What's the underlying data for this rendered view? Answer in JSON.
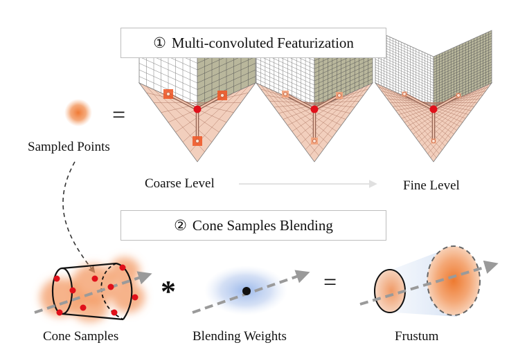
{
  "sections": [
    {
      "number": "①",
      "title": "Multi-convoluted Featurization"
    },
    {
      "number": "②",
      "title": "Cone Samples Blending"
    }
  ],
  "labels": {
    "sampled_points": "Sampled Points",
    "coarse_level": "Coarse Level",
    "fine_level": "Fine Level",
    "cone_samples": "Cone Samples",
    "blending_weights": "Blending Weights",
    "frustum": "Frustum"
  },
  "operators": {
    "equals_top": "=",
    "multiply": "*",
    "equals_bottom": "="
  },
  "grid_levels": [
    {
      "name": "coarse",
      "divisions": 8
    },
    {
      "name": "medium",
      "divisions": 13
    },
    {
      "name": "fine",
      "divisions": 20
    }
  ],
  "colors": {
    "point_orange": "#f08a4b",
    "red_dot": "#e0101a",
    "floor_pink": "#f2cfbd",
    "wall_olive": "#b9b79c",
    "wall_white": "#ffffff",
    "grid_line": "#7a7a7a",
    "arrow_gray": "#9a9a9a",
    "blend_blue": "#a9bfe6"
  },
  "icons": {
    "sampled_point": "orange-blob-icon",
    "arrow": "dashed-arrow-icon"
  }
}
